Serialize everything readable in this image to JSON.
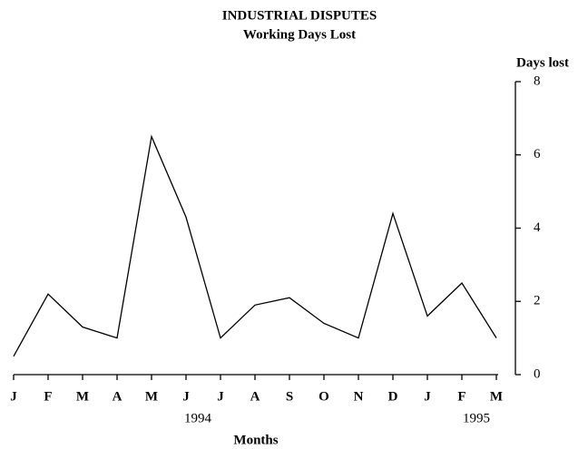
{
  "chart_data": {
    "type": "line",
    "title": "INDUSTRIAL DISPUTES",
    "subtitle": "Working Days Lost",
    "y_label": "Days lost",
    "x_label": "Months",
    "annotations": [
      "1994",
      "1995"
    ],
    "categories": [
      "J",
      "F",
      "M",
      "A",
      "M",
      "J",
      "J",
      "A",
      "S",
      "O",
      "N",
      "D",
      "J",
      "F",
      "M"
    ],
    "values": [
      0.5,
      2.2,
      1.3,
      1.0,
      6.5,
      4.3,
      1.0,
      1.9,
      2.1,
      1.4,
      1.0,
      4.4,
      1.6,
      2.5,
      1.0
    ],
    "color": "#000000",
    "ylim": [
      0,
      8
    ],
    "yticks": [
      0,
      2,
      4,
      6,
      8
    ],
    "grid": false
  }
}
